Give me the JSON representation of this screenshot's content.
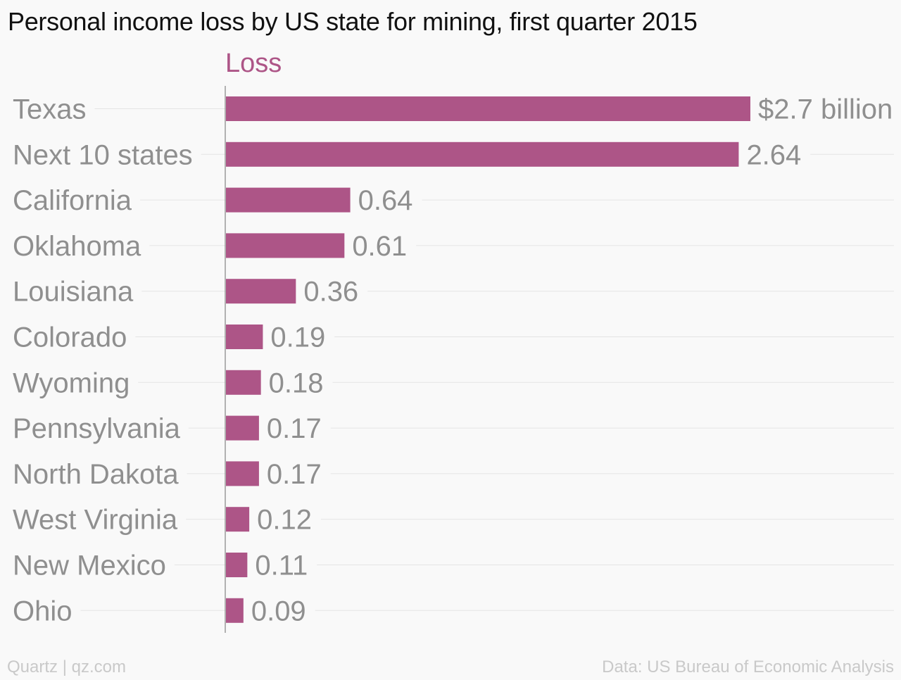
{
  "chart_data": {
    "type": "bar",
    "orientation": "horizontal",
    "title": "Personal income loss by US state for mining, first quarter 2015",
    "categories": [
      "Texas",
      "Next 10 states",
      "California",
      "Oklahoma",
      "Louisiana",
      "Colorado",
      "Wyoming",
      "Pennsylvania",
      "North Dakota",
      "West Virginia",
      "New Mexico",
      "Ohio"
    ],
    "series": [
      {
        "name": "Loss",
        "values": [
          2.7,
          2.64,
          0.64,
          0.61,
          0.36,
          0.19,
          0.18,
          0.17,
          0.17,
          0.12,
          0.11,
          0.09
        ],
        "labels": [
          "$2.7 billion",
          "2.64",
          "0.64",
          "0.61",
          "0.36",
          "0.19",
          "0.18",
          "0.17",
          "0.17",
          "0.12",
          "0.11",
          "0.09"
        ],
        "color": "#ad5587"
      }
    ],
    "xlim": [
      0,
      2.7
    ],
    "grid": true,
    "legend": "top"
  },
  "footer": {
    "credit": "Quartz | qz.com",
    "source": "Data: US Bureau of Economic Analysis"
  },
  "colors": {
    "bar": "#ad5587",
    "label_gray": "#8f8f8f",
    "footer_gray": "#c9c9c9",
    "background": "#f9f9f9"
  }
}
